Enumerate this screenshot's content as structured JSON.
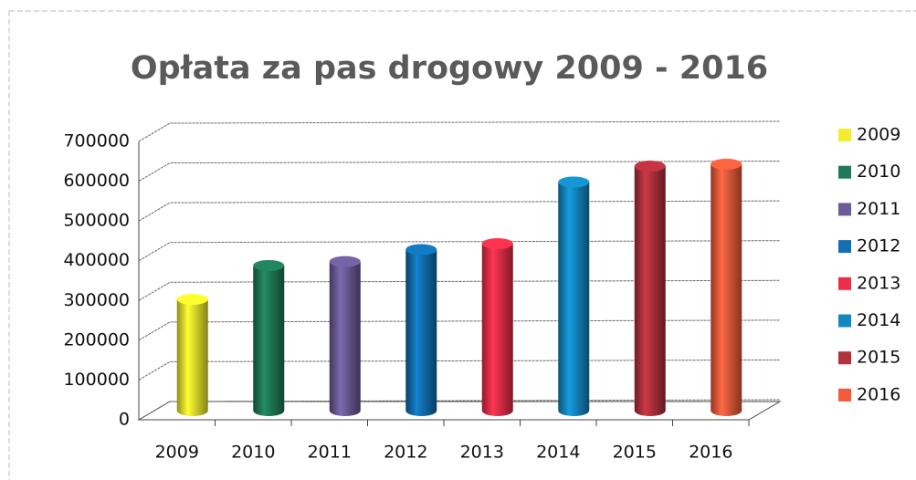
{
  "chart_data": {
    "type": "bar3d",
    "title": "Opłata za pas drogowy 2009 - 2016",
    "categories": [
      "2009",
      "2010",
      "2011",
      "2012",
      "2013",
      "2014",
      "2015",
      "2016"
    ],
    "values": [
      280000,
      365000,
      375000,
      405000,
      420000,
      575000,
      615000,
      620000
    ],
    "colors": [
      "#f4ec2c",
      "#1f7a57",
      "#6c5b98",
      "#1170b2",
      "#ee2e48",
      "#1388c2",
      "#b3313c",
      "#f25c3b"
    ],
    "ylim": [
      0,
      700000
    ],
    "yticks": [
      0,
      100000,
      200000,
      300000,
      400000,
      500000,
      600000,
      700000
    ],
    "grid": true,
    "legend": "right"
  }
}
